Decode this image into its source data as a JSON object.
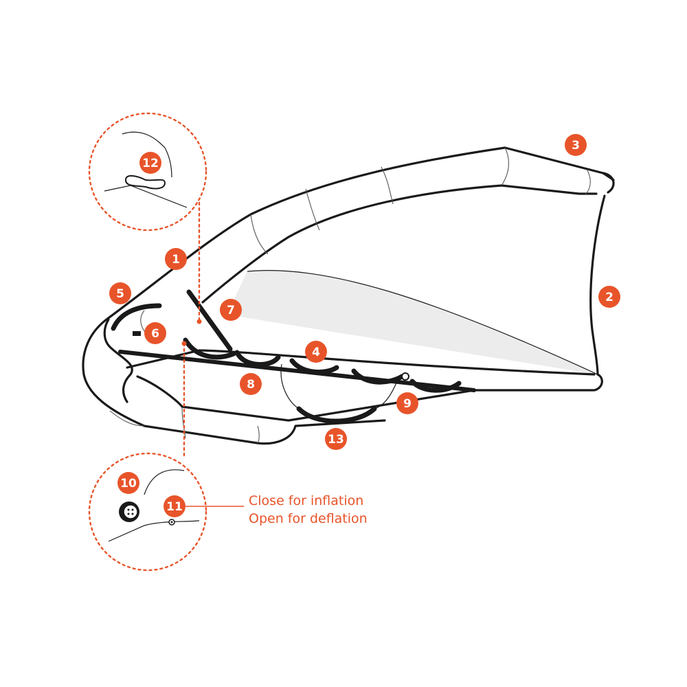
{
  "diagram": {
    "subject": "wing-kite",
    "labels": [
      "1",
      "2",
      "3",
      "4",
      "5",
      "6",
      "7",
      "8",
      "9",
      "10",
      "11",
      "12",
      "13"
    ],
    "valve_note": {
      "line1": "Close for inflation",
      "line2": "Open for deflation"
    }
  },
  "colors": {
    "accent": "#e8542a",
    "outline": "#1a1a1a",
    "canopy": "#ececec",
    "background": "#ffffff"
  }
}
